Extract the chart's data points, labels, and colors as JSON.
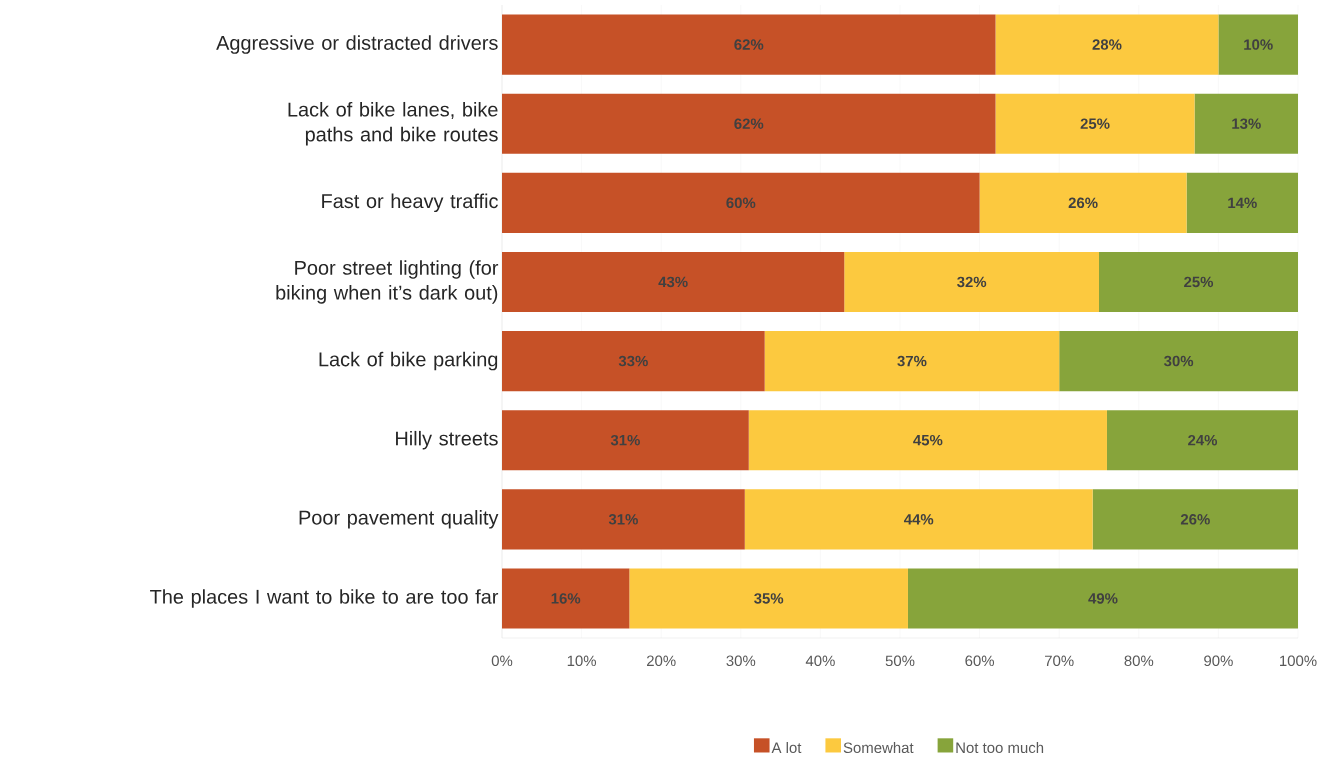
{
  "chart_data": {
    "type": "bar",
    "orientation": "horizontal",
    "stacked": true,
    "categories": [
      "Aggressive or distracted drivers",
      "Lack of bike lanes, bike paths and bike routes",
      "Fast or heavy traffic",
      "Poor street lighting (for biking when it’s dark out)",
      "Lack of bike parking",
      "Hilly streets",
      "Poor pavement quality",
      "The places I want to bike to are too far"
    ],
    "series": [
      {
        "name": "A lot",
        "color": "#c65127",
        "values": [
          62,
          62,
          60,
          43,
          33,
          31,
          30.5,
          16
        ],
        "value_labels": [
          "62%",
          "62%",
          "60%",
          "43%",
          "33%",
          "31%",
          "31%",
          "16%"
        ]
      },
      {
        "name": "Somewhat",
        "color": "#fcc93f",
        "values": [
          28,
          25,
          26,
          32,
          37,
          45,
          43.7,
          35
        ],
        "value_labels": [
          "28%",
          "25%",
          "26%",
          "32%",
          "37%",
          "45%",
          "44%",
          "35%"
        ]
      },
      {
        "name": "Not too much",
        "color": "#87a43b",
        "values": [
          10,
          13,
          14,
          25,
          30,
          24,
          25.8,
          49
        ],
        "value_labels": [
          "10%",
          "13%",
          "14%",
          "25%",
          "30%",
          "24%",
          "26%",
          "49%"
        ]
      }
    ],
    "xlim": [
      0,
      100
    ],
    "xticks": [
      {
        "value": 0,
        "label": "0%"
      },
      {
        "value": 10,
        "label": "10%"
      },
      {
        "value": 20,
        "label": "20%"
      },
      {
        "value": 30,
        "label": "30%"
      },
      {
        "value": 40,
        "label": "40%"
      },
      {
        "value": 50,
        "label": "50%"
      },
      {
        "value": 60,
        "label": "60%"
      },
      {
        "value": 70,
        "label": "70%"
      },
      {
        "value": 80,
        "label": "80%"
      },
      {
        "value": 90,
        "label": "90%"
      },
      {
        "value": 100,
        "label": "100%"
      }
    ],
    "grid": "x",
    "legend": "bottom"
  }
}
